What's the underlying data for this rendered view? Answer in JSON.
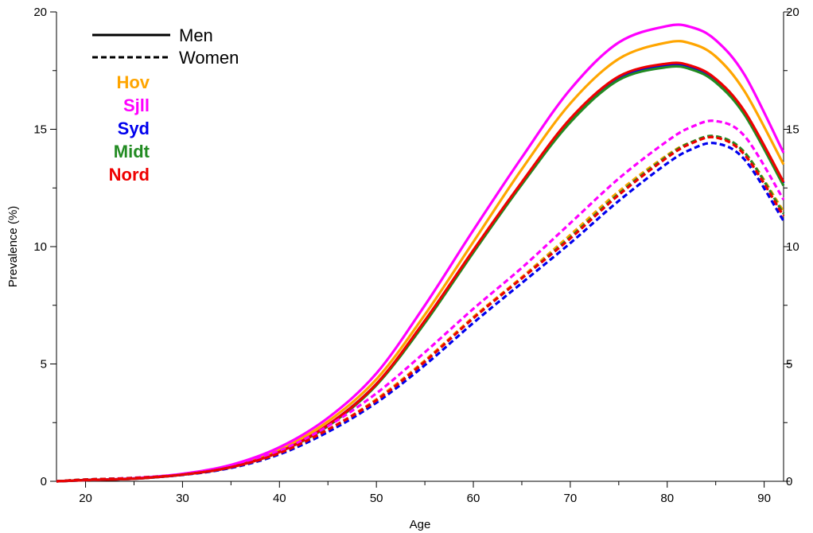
{
  "chart_data": {
    "type": "line",
    "title": "",
    "xlabel": "Age",
    "ylabel": "Prevalence (%)",
    "xlim": [
      17,
      92
    ],
    "ylim": [
      0,
      20
    ],
    "x_ticks": [
      20,
      30,
      40,
      50,
      60,
      70,
      80,
      90
    ],
    "y_ticks": [
      0,
      5,
      10,
      15,
      20
    ],
    "grid": false,
    "right_axis_mirrored": true,
    "legend_linestyle": [
      {
        "label": "Men",
        "dash": "solid"
      },
      {
        "label": "Women",
        "dash": "dashed"
      }
    ],
    "legend_regions": [
      {
        "label": "Hov",
        "color": "#FFA500"
      },
      {
        "label": "Sjll",
        "color": "#FF00FF"
      },
      {
        "label": "Syd",
        "color": "#0000EE"
      },
      {
        "label": "Midt",
        "color": "#228B22"
      },
      {
        "label": "Nord",
        "color": "#EE0000"
      }
    ],
    "x": [
      17,
      20,
      25,
      30,
      35,
      40,
      45,
      50,
      55,
      60,
      65,
      70,
      75,
      80,
      82.5,
      85,
      88,
      92
    ],
    "series": [
      {
        "name": "Hov",
        "sex": "Men",
        "color": "#FFA500",
        "dash": "solid",
        "values": [
          0.0,
          0.05,
          0.12,
          0.3,
          0.65,
          1.35,
          2.55,
          4.35,
          7.1,
          10.2,
          13.3,
          16.1,
          18.0,
          18.7,
          18.65,
          18.1,
          16.6,
          13.5
        ]
      },
      {
        "name": "Sjll",
        "sex": "Men",
        "color": "#FF00FF",
        "dash": "solid",
        "values": [
          0.0,
          0.05,
          0.13,
          0.32,
          0.7,
          1.45,
          2.7,
          4.6,
          7.5,
          10.7,
          13.8,
          16.7,
          18.7,
          19.4,
          19.35,
          18.8,
          17.3,
          14.0
        ]
      },
      {
        "name": "Syd",
        "sex": "Men",
        "color": "#0000EE",
        "dash": "solid",
        "values": [
          0.0,
          0.05,
          0.11,
          0.28,
          0.6,
          1.25,
          2.4,
          4.15,
          6.8,
          9.8,
          12.7,
          15.4,
          17.2,
          17.75,
          17.65,
          17.1,
          15.7,
          12.7
        ]
      },
      {
        "name": "Midt",
        "sex": "Men",
        "color": "#228B22",
        "dash": "solid",
        "values": [
          0.0,
          0.05,
          0.11,
          0.28,
          0.6,
          1.25,
          2.35,
          4.1,
          6.75,
          9.75,
          12.65,
          15.3,
          17.1,
          17.65,
          17.55,
          17.0,
          15.6,
          12.6
        ]
      },
      {
        "name": "Nord",
        "sex": "Men",
        "color": "#EE0000",
        "dash": "solid",
        "values": [
          0.0,
          0.05,
          0.11,
          0.28,
          0.6,
          1.25,
          2.4,
          4.15,
          6.85,
          9.85,
          12.75,
          15.45,
          17.25,
          17.8,
          17.7,
          17.15,
          15.75,
          12.75
        ]
      },
      {
        "name": "Hov",
        "sex": "Women",
        "color": "#FFA500",
        "dash": "dashed",
        "values": [
          0.0,
          0.07,
          0.14,
          0.28,
          0.6,
          1.2,
          2.2,
          3.5,
          5.15,
          7.0,
          8.7,
          10.5,
          12.35,
          13.9,
          14.45,
          14.65,
          14.0,
          11.5
        ]
      },
      {
        "name": "Sjll",
        "sex": "Women",
        "color": "#FF00FF",
        "dash": "dashed",
        "values": [
          0.0,
          0.07,
          0.15,
          0.3,
          0.65,
          1.3,
          2.35,
          3.75,
          5.5,
          7.35,
          9.1,
          11.0,
          12.9,
          14.5,
          15.1,
          15.35,
          14.7,
          12.0
        ]
      },
      {
        "name": "Syd",
        "sex": "Women",
        "color": "#0000EE",
        "dash": "dashed",
        "values": [
          0.0,
          0.07,
          0.14,
          0.27,
          0.57,
          1.15,
          2.1,
          3.35,
          4.95,
          6.75,
          8.45,
          10.15,
          11.95,
          13.55,
          14.15,
          14.4,
          13.7,
          11.1
        ]
      },
      {
        "name": "Midt",
        "sex": "Women",
        "color": "#228B22",
        "dash": "dashed",
        "values": [
          0.0,
          0.07,
          0.14,
          0.28,
          0.6,
          1.2,
          2.2,
          3.45,
          5.1,
          6.95,
          8.65,
          10.4,
          12.25,
          13.85,
          14.45,
          14.7,
          14.0,
          11.4
        ]
      },
      {
        "name": "Nord",
        "sex": "Women",
        "color": "#EE0000",
        "dash": "dashed",
        "values": [
          0.0,
          0.07,
          0.14,
          0.28,
          0.6,
          1.2,
          2.2,
          3.45,
          5.1,
          6.95,
          8.65,
          10.35,
          12.2,
          13.8,
          14.4,
          14.65,
          13.9,
          11.3
        ]
      }
    ]
  }
}
